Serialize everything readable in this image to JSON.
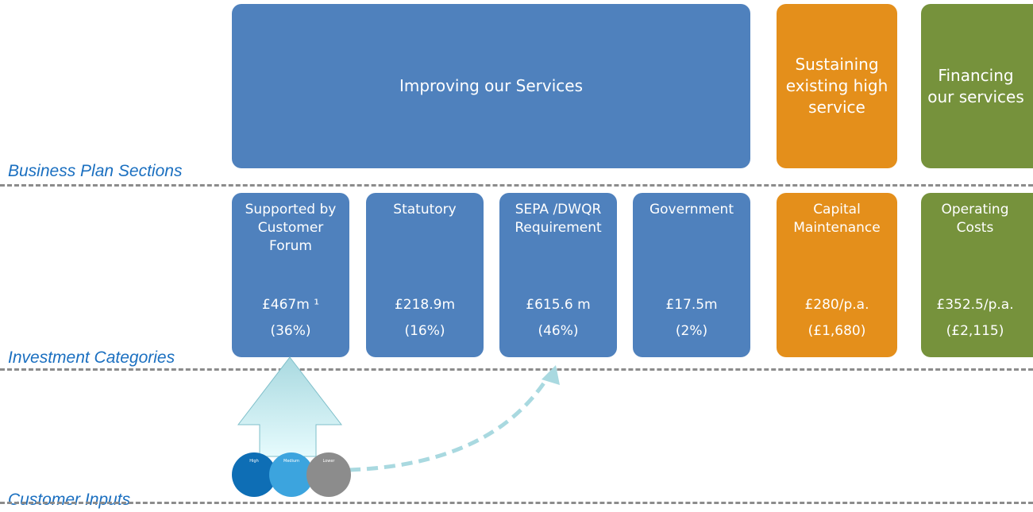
{
  "section_labels": [
    "Business Plan Sections",
    "Investment Categories",
    "Customer Inputs"
  ],
  "sections": [
    "Improving our Services",
    "Sustaining existing high service",
    "Financing our services"
  ],
  "categories": [
    {
      "title": "Supported by Customer Forum",
      "amount": "£467m ¹",
      "share": "(36%)"
    },
    {
      "title": "Statutory",
      "amount": "£218.9m",
      "share": "(16%)"
    },
    {
      "title": "SEPA /DWQR Requirement",
      "amount": "£615.6 m",
      "share": "(46%)"
    },
    {
      "title": "Government",
      "amount": "£17.5m",
      "share": "(2%)"
    },
    {
      "title": "Capital Maintenance",
      "amount": "£280/p.a.",
      "share": "(£1,680)"
    },
    {
      "title": "Operating Costs",
      "amount": "£352.5/p.a.",
      "share": "(£2,115)"
    }
  ],
  "customer_inputs": [
    "High",
    "Medium",
    "Lower"
  ]
}
